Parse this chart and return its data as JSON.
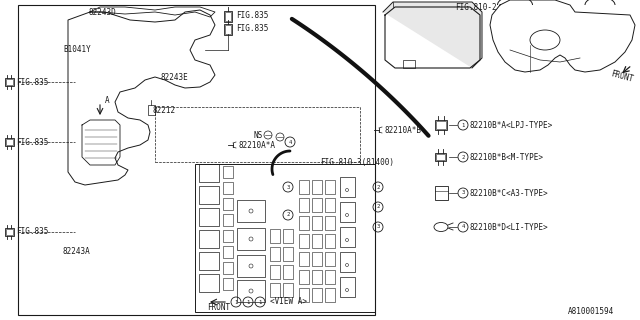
{
  "bg_color": "#ffffff",
  "line_color": "#1a1a1a",
  "text_color": "#1a1a1a",
  "part_number": "A810001594",
  "font_size": 5.5,
  "fig835_labels": [
    "FIG.835",
    "FIG.835",
    "FIG.835"
  ],
  "fig835_top_labels": [
    "FIG.835",
    "FIG.835"
  ],
  "fig810_2": "FIG.810-2",
  "fig810_3": "FIG.810-3(81400)",
  "labels": {
    "82243D": "82243D",
    "B1041Y": "B1041Y",
    "82243E": "82243E",
    "82212": "82212",
    "82210A_A": "82210A*A",
    "82210A_B": "82210A*B",
    "82243A": "82243A",
    "NS": "NS",
    "FRONT": "FRONT",
    "VIEW_A": "<VIEW A>"
  },
  "legend": [
    {
      "num": "1",
      "code": "82210B*A<LPJ-TYPE>",
      "type": "lpj"
    },
    {
      "num": "2",
      "code": "82210B*B<M-TYPE>",
      "type": "m"
    },
    {
      "num": "3",
      "code": "82210B*C<A3-TYPE>",
      "type": "a3"
    },
    {
      "num": "4",
      "code": "82210B*D<LI-TYPE>",
      "type": "li"
    }
  ]
}
